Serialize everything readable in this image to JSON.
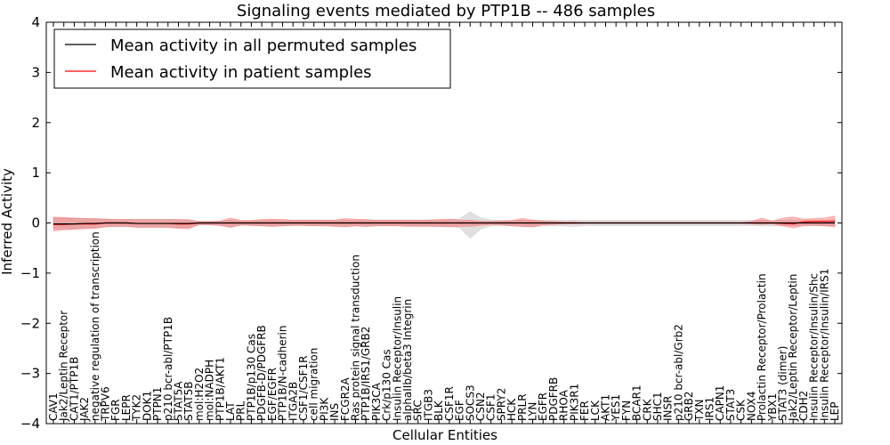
{
  "chart_data": {
    "type": "line",
    "title": "Signaling events mediated by PTP1B -- 486 samples",
    "xlabel": "Cellular Entities",
    "ylabel": "Inferred Activity",
    "ylim": [
      -4,
      4
    ],
    "yticks": [
      -4,
      -3,
      -2,
      -1,
      0,
      1,
      2,
      3,
      4
    ],
    "ytick_labels": [
      "−4",
      "−3",
      "−2",
      "−1",
      "0",
      "1",
      "2",
      "3",
      "4"
    ],
    "legend_position": "top-left",
    "categories": [
      "CAV1",
      "Jak2/Leptin Receptor",
      "CAT1/PTP1B",
      "JAK2",
      "negative regulation of transcription",
      "TRPV6",
      "FGR",
      "LEPR",
      "TYK2",
      "DOK1",
      "PTPN1",
      "p210 bcr-abl/PTP1B",
      "STAT5A",
      "STAT5B",
      "mol:H2O2",
      "mol:NADPH",
      "PTP1B/AKT1",
      "LAT",
      "PRL",
      "PTP1B/p130 Cas",
      "PDGFB-D/PDGFRB",
      "EGF/EGFR",
      "PTP1B/N-cadherin",
      "ITGA2B",
      "CSF1/CSF1R",
      "cell migration",
      "PI3K",
      "INS",
      "FCGR2A",
      "Ras protein signal transduction",
      "PTP1B/IRS1/GRB2",
      "PIK3CA",
      "Crk/p130 Cas",
      "Insulin Receptor/Insulin",
      "alphaIIb/beta3 Integrin",
      "SRC",
      "ITGB3",
      "BLK",
      "CSF1R",
      "EGF",
      "SOCS3",
      "CSN2",
      "CSF1",
      "SPRY2",
      "HCK",
      "PRLR",
      "LYN",
      "EGFR",
      "PDGFRB",
      "RHOA",
      "PIK3R1",
      "FER",
      "LCK",
      "AKT1",
      "YES1",
      "FYN",
      "BCAR1",
      "CRK",
      "SHC1",
      "INSR",
      "p210 bcr-abl/Grb2",
      "GRB2",
      "TXN",
      "IRS1",
      "CAPN1",
      "STAT3",
      "CSK",
      "NOX4",
      "Prolactin Receptor/Prolactin",
      "YBX1",
      "STAT3 (dimer)",
      "Jak2/Leptin Receptor/Leptin",
      "CDH2",
      "Insulin Receptor/Insulin/Shc",
      "Insulin Receptor/Insulin/IRS1",
      "LEP"
    ],
    "series": [
      {
        "name": "Mean activity in all permuted samples",
        "color": "#000000",
        "values": [
          -0.02,
          -0.02,
          -0.02,
          -0.01,
          -0.01,
          0.0,
          0.0,
          0.0,
          -0.01,
          -0.01,
          -0.01,
          -0.01,
          -0.01,
          -0.01,
          0.0,
          0.0,
          0.0,
          0.0,
          0.0,
          0.0,
          0.0,
          0.0,
          0.0,
          0.0,
          0.0,
          0.0,
          0.0,
          0.0,
          0.0,
          0.0,
          0.0,
          0.0,
          0.0,
          0.0,
          0.0,
          0.0,
          0.0,
          0.0,
          0.0,
          0.0,
          0.0,
          0.0,
          0.0,
          0.0,
          0.0,
          0.0,
          0.0,
          0.0,
          0.0,
          0.0,
          0.0,
          0.0,
          0.0,
          0.0,
          0.0,
          0.0,
          0.0,
          0.0,
          0.0,
          0.0,
          0.0,
          0.0,
          0.0,
          0.0,
          0.0,
          0.0,
          0.0,
          0.0,
          0.0,
          0.0,
          0.0,
          0.0,
          0.0,
          0.0,
          0.0,
          0.0
        ],
        "band_low": [
          -0.12,
          -0.12,
          -0.11,
          -0.1,
          -0.09,
          -0.08,
          -0.07,
          -0.07,
          -0.08,
          -0.08,
          -0.08,
          -0.08,
          -0.09,
          -0.09,
          -0.04,
          -0.04,
          -0.05,
          -0.08,
          -0.05,
          -0.05,
          -0.06,
          -0.07,
          -0.06,
          -0.05,
          -0.05,
          -0.06,
          -0.06,
          -0.06,
          -0.07,
          -0.06,
          -0.07,
          -0.06,
          -0.06,
          -0.06,
          -0.06,
          -0.06,
          -0.06,
          -0.07,
          -0.07,
          -0.09,
          -0.3,
          -0.12,
          -0.06,
          -0.05,
          -0.06,
          -0.07,
          -0.08,
          -0.06,
          -0.06,
          -0.06,
          -0.07,
          -0.05,
          -0.05,
          -0.05,
          -0.05,
          -0.05,
          -0.05,
          -0.05,
          -0.05,
          -0.05,
          -0.05,
          -0.05,
          -0.05,
          -0.05,
          -0.05,
          -0.05,
          -0.05,
          -0.05,
          -0.06,
          -0.06,
          -0.06,
          -0.06,
          -0.05,
          -0.05,
          -0.05,
          -0.06
        ],
        "band_high": [
          0.1,
          0.1,
          0.09,
          0.09,
          0.08,
          0.08,
          0.07,
          0.07,
          0.07,
          0.07,
          0.07,
          0.07,
          0.07,
          0.07,
          0.03,
          0.03,
          0.04,
          0.06,
          0.04,
          0.05,
          0.05,
          0.06,
          0.05,
          0.05,
          0.05,
          0.05,
          0.05,
          0.05,
          0.06,
          0.05,
          0.06,
          0.05,
          0.05,
          0.05,
          0.05,
          0.05,
          0.06,
          0.06,
          0.06,
          0.08,
          0.22,
          0.1,
          0.06,
          0.05,
          0.05,
          0.06,
          0.06,
          0.05,
          0.05,
          0.05,
          0.06,
          0.05,
          0.05,
          0.05,
          0.05,
          0.05,
          0.05,
          0.05,
          0.05,
          0.05,
          0.05,
          0.05,
          0.05,
          0.05,
          0.05,
          0.05,
          0.05,
          0.05,
          0.05,
          0.05,
          0.05,
          0.05,
          0.05,
          0.05,
          0.05,
          0.06
        ]
      },
      {
        "name": "Mean activity in patient samples",
        "color": "#ff0000",
        "values": [
          -0.03,
          -0.03,
          -0.02,
          -0.02,
          -0.02,
          0.0,
          0.0,
          0.0,
          -0.01,
          -0.01,
          -0.01,
          -0.01,
          -0.02,
          -0.02,
          0.0,
          0.0,
          0.0,
          0.0,
          0.0,
          0.0,
          0.0,
          0.0,
          0.0,
          0.0,
          0.0,
          0.0,
          0.0,
          0.0,
          0.0,
          0.0,
          0.0,
          0.0,
          0.0,
          0.0,
          0.0,
          0.0,
          0.0,
          0.0,
          0.0,
          0.0,
          0.0,
          0.0,
          0.0,
          0.0,
          0.0,
          0.0,
          0.0,
          0.0,
          0.0,
          0.0,
          0.0,
          0.0,
          0.0,
          0.0,
          0.0,
          0.0,
          0.0,
          0.0,
          0.0,
          0.0,
          0.0,
          0.0,
          0.0,
          0.0,
          0.0,
          0.0,
          0.0,
          0.0,
          0.0,
          0.0,
          -0.01,
          -0.02,
          0.02,
          0.03,
          0.03,
          0.03
        ],
        "band_low": [
          -0.16,
          -0.14,
          -0.13,
          -0.12,
          -0.11,
          -0.08,
          -0.07,
          -0.07,
          -0.09,
          -0.09,
          -0.09,
          -0.09,
          -0.11,
          -0.12,
          -0.03,
          -0.04,
          -0.05,
          -0.09,
          -0.04,
          -0.05,
          -0.06,
          -0.07,
          -0.06,
          -0.05,
          -0.05,
          -0.06,
          -0.06,
          -0.07,
          -0.08,
          -0.06,
          -0.07,
          -0.06,
          -0.06,
          -0.06,
          -0.07,
          -0.07,
          -0.07,
          -0.07,
          -0.08,
          -0.07,
          -0.07,
          -0.05,
          -0.03,
          -0.04,
          -0.06,
          -0.07,
          -0.08,
          -0.04,
          -0.03,
          -0.02,
          -0.02,
          -0.01,
          -0.01,
          -0.01,
          -0.01,
          -0.01,
          -0.01,
          -0.01,
          -0.01,
          -0.01,
          -0.01,
          -0.01,
          -0.01,
          -0.01,
          -0.01,
          -0.01,
          -0.01,
          -0.02,
          -0.03,
          -0.02,
          -0.06,
          -0.1,
          -0.06,
          -0.05,
          -0.06,
          -0.08
        ],
        "band_high": [
          0.12,
          0.11,
          0.1,
          0.09,
          0.09,
          0.08,
          0.07,
          0.07,
          0.07,
          0.07,
          0.07,
          0.07,
          0.07,
          0.06,
          0.03,
          0.03,
          0.04,
          0.1,
          0.05,
          0.05,
          0.07,
          0.08,
          0.07,
          0.06,
          0.06,
          0.06,
          0.06,
          0.06,
          0.09,
          0.08,
          0.07,
          0.06,
          0.06,
          0.06,
          0.06,
          0.06,
          0.06,
          0.07,
          0.08,
          0.06,
          0.06,
          0.04,
          0.03,
          0.04,
          0.05,
          0.09,
          0.06,
          0.04,
          0.03,
          0.02,
          0.02,
          0.01,
          0.01,
          0.01,
          0.01,
          0.01,
          0.01,
          0.01,
          0.01,
          0.01,
          0.01,
          0.01,
          0.01,
          0.01,
          0.01,
          0.01,
          0.01,
          0.03,
          0.1,
          0.03,
          0.1,
          0.12,
          0.08,
          0.09,
          0.1,
          0.14
        ]
      }
    ]
  }
}
